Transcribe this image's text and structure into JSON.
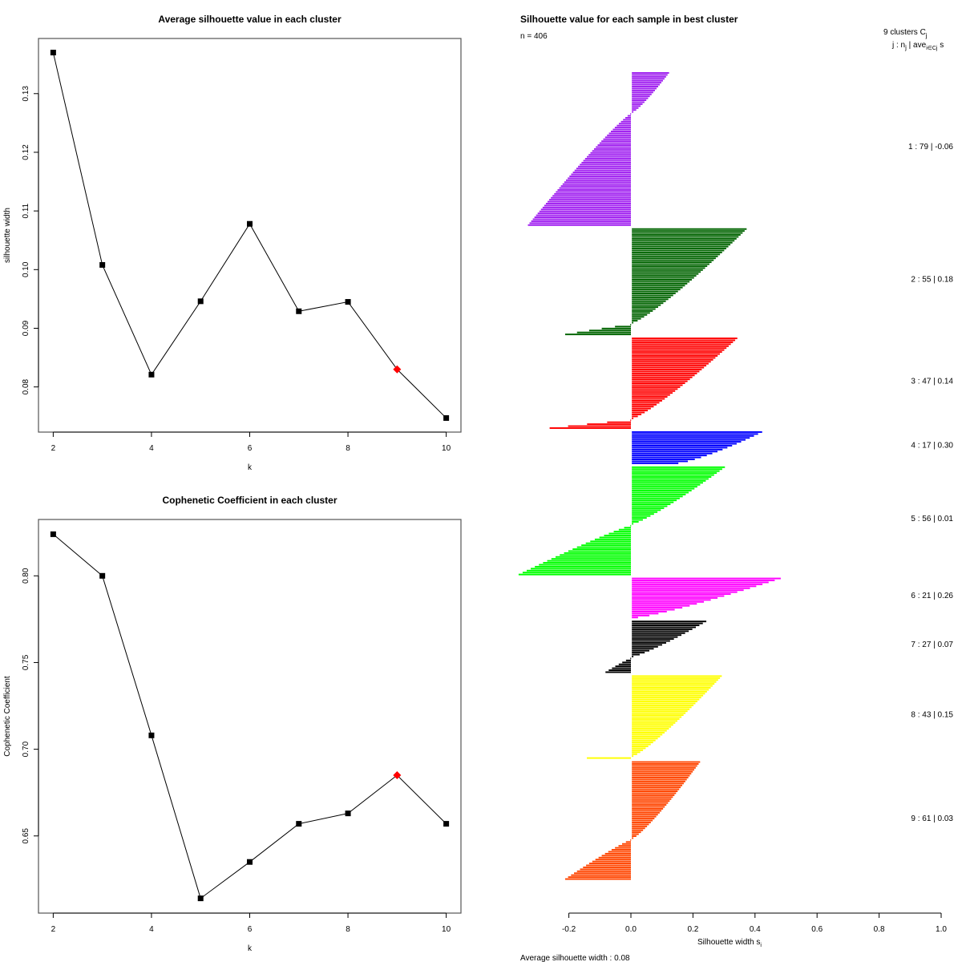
{
  "chart_data": [
    {
      "type": "line",
      "title": "Average silhouette value in each cluster",
      "xlabel": "k",
      "ylabel": "silhouette width",
      "x": [
        2,
        3,
        4,
        5,
        6,
        7,
        8,
        9,
        10
      ],
      "values": [
        0.137,
        0.1008,
        0.0821,
        0.0946,
        0.1078,
        0.0929,
        0.0945,
        0.083,
        0.0747
      ],
      "highlight_k": 9,
      "highlight_color": "#ff0000",
      "xticks": [
        "2",
        "4",
        "6",
        "8",
        "10"
      ],
      "yticks": [
        "0.08",
        "0.09",
        "0.10",
        "0.11",
        "0.12",
        "0.13"
      ],
      "xlim": [
        1.7,
        10.3
      ],
      "ylim": [
        0.0723,
        0.1394
      ]
    },
    {
      "type": "line",
      "title": "Cophenetic Coefficient in each cluster",
      "xlabel": "k",
      "ylabel": "Cophenetic Coefficient",
      "x": [
        2,
        3,
        4,
        5,
        6,
        7,
        8,
        9,
        10
      ],
      "values": [
        0.824,
        0.8,
        0.708,
        0.614,
        0.635,
        0.657,
        0.663,
        0.685,
        0.657
      ],
      "highlight_k": 9,
      "highlight_color": "#ff0000",
      "xticks": [
        "2",
        "4",
        "6",
        "8",
        "10"
      ],
      "yticks": [
        "0.65",
        "0.70",
        "0.75",
        "0.80"
      ],
      "xlim": [
        1.7,
        10.3
      ],
      "ylim": [
        0.6055,
        0.8325
      ]
    },
    {
      "type": "bar",
      "orientation": "horizontal",
      "title": "Silhouette value for each sample in best cluster",
      "n_label": "n = 406",
      "legend_title": "9  clusters  C",
      "legend_title_sub": "j",
      "legend_header": "j :  n",
      "legend_header_tail": " | ave",
      "legend_header_s": "  s",
      "xlabel": "Silhouette width s",
      "xlabel_sub": "i",
      "xticks": [
        "-0.2",
        "0.0",
        "0.2",
        "0.4",
        "0.6",
        "0.8",
        "1.0"
      ],
      "xlim": [
        -0.2,
        1.0
      ],
      "average_label": "Average silhouette width :  0.08",
      "clusters": [
        {
          "j": 1,
          "n": 79,
          "ave": "-0.06",
          "color": "#a020f0",
          "max": 0.12,
          "min": -0.33,
          "npos": 21
        },
        {
          "j": 2,
          "n": 55,
          "ave": "0.18",
          "color": "#006400",
          "max": 0.37,
          "min": -0.21,
          "npos": 49
        },
        {
          "j": 3,
          "n": 47,
          "ave": "0.14",
          "color": "#ff0000",
          "max": 0.34,
          "min": -0.26,
          "npos": 42
        },
        {
          "j": 4,
          "n": 17,
          "ave": "0.30",
          "color": "#0000ff",
          "max": 0.42,
          "min": 0.15,
          "npos": 17
        },
        {
          "j": 5,
          "n": 56,
          "ave": "0.01",
          "color": "#00ff00",
          "max": 0.3,
          "min": -0.36,
          "npos": 30
        },
        {
          "j": 6,
          "n": 21,
          "ave": "0.26",
          "color": "#ff00ff",
          "max": 0.48,
          "min": 0.02,
          "npos": 21
        },
        {
          "j": 7,
          "n": 27,
          "ave": "0.07",
          "color": "#000000",
          "max": 0.24,
          "min": -0.08,
          "npos": 19
        },
        {
          "j": 8,
          "n": 43,
          "ave": "0.15",
          "color": "#ffff00",
          "max": 0.29,
          "min": -0.14,
          "npos": 42
        },
        {
          "j": 9,
          "n": 61,
          "ave": "0.03",
          "color": "#ff4500",
          "max": 0.22,
          "min": -0.21,
          "npos": 40
        }
      ]
    }
  ]
}
